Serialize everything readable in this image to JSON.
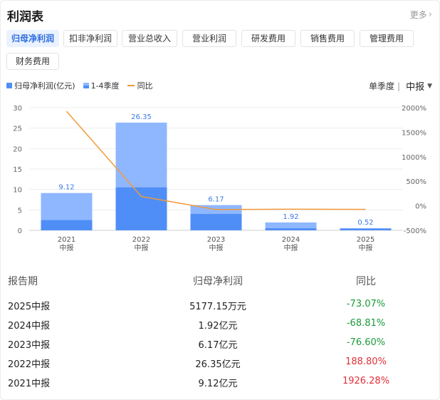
{
  "header": {
    "title": "利润表",
    "more_label": "更多"
  },
  "tabs": [
    {
      "label": "归母净利润",
      "active": true
    },
    {
      "label": "扣非净利润",
      "active": false
    },
    {
      "label": "营业总收入",
      "active": false
    },
    {
      "label": "营业利润",
      "active": false
    },
    {
      "label": "研发费用",
      "active": false
    },
    {
      "label": "销售费用",
      "active": false
    },
    {
      "label": "管理费用",
      "active": false
    },
    {
      "label": "财务费用",
      "active": false
    }
  ],
  "legend": {
    "net_profit": "归母净利润(亿元)",
    "quarters": "1-4季度",
    "yoy": "同比"
  },
  "period": {
    "label": "单季度",
    "separator": "|",
    "selected": "中报"
  },
  "colors": {
    "bar_light": "#8fb7ff",
    "bar_dark": "#4f8ef7",
    "line": "#f29a3a",
    "negative": "#1b9a3a",
    "positive": "#e0303a",
    "active_tab": "#2f6fe0"
  },
  "chart_data": {
    "type": "bar",
    "categories": [
      [
        "2021",
        "中报"
      ],
      [
        "2022",
        "中报"
      ],
      [
        "2023",
        "中报"
      ],
      [
        "2024",
        "中报"
      ],
      [
        "2025",
        "中报"
      ]
    ],
    "series": [
      {
        "name": "归母净利润(亿元)",
        "values": [
          9.12,
          26.35,
          6.17,
          1.92,
          0.52
        ],
        "labels": [
          "9.12",
          "26.35",
          "6.17",
          "1.92",
          "0.52"
        ]
      },
      {
        "name": "1-4季度",
        "values": [
          2.5,
          10.5,
          4.0,
          0.5,
          0.4
        ]
      },
      {
        "name": "同比",
        "values": [
          1926.28,
          188.8,
          -76.6,
          -68.81,
          -73.07
        ],
        "axis": "right"
      }
    ],
    "y_left": {
      "ticks": [
        "0",
        "5",
        "10",
        "15",
        "20",
        "25",
        "30"
      ],
      "range": [
        0,
        30
      ]
    },
    "y_right": {
      "ticks": [
        "-500%",
        "0%",
        "500%",
        "1000%",
        "1500%",
        "2000%"
      ],
      "range": [
        -500,
        2000
      ]
    }
  },
  "table": {
    "headers": [
      "报告期",
      "归母净利润",
      "同比"
    ],
    "rows": [
      {
        "period": "2025中报",
        "value": "5177.15万元",
        "yoy": "-73.07%",
        "sign": "neg"
      },
      {
        "period": "2024中报",
        "value": "1.92亿元",
        "yoy": "-68.81%",
        "sign": "neg"
      },
      {
        "period": "2023中报",
        "value": "6.17亿元",
        "yoy": "-76.60%",
        "sign": "neg"
      },
      {
        "period": "2022中报",
        "value": "26.35亿元",
        "yoy": "188.80%",
        "sign": "pos"
      },
      {
        "period": "2021中报",
        "value": "9.12亿元",
        "yoy": "1926.28%",
        "sign": "pos"
      }
    ]
  }
}
